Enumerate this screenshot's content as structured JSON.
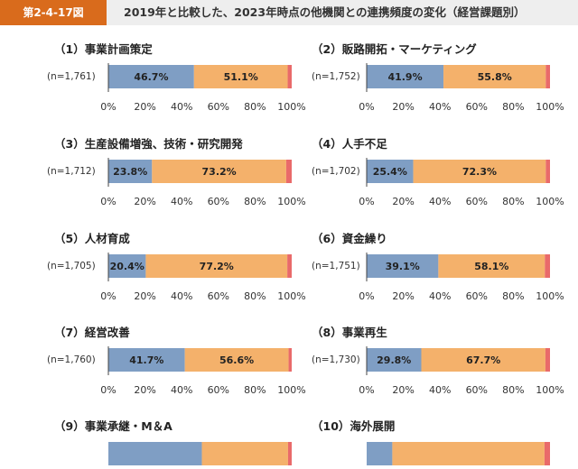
{
  "header": {
    "figure_number": "第2-4-17図",
    "title": "2019年と比較した、2023年時点の他機関との連携頻度の変化（経営課題別）"
  },
  "colors": {
    "increased": "#7f9ec4",
    "unchanged": "#f4b16b",
    "decreased": "#e96a6a",
    "header_accent": "#d96b1c",
    "header_bg": "#eeeeee"
  },
  "chart_data": [
    {
      "type": "bar",
      "title": "（1）事業計画策定",
      "n_label": "(n=1,761)",
      "values": [
        46.7,
        51.1,
        2.2
      ],
      "value_labels": [
        "46.7%",
        "51.1%",
        ""
      ],
      "xlim": [
        0,
        100
      ],
      "ticks": [
        "0%",
        "20%",
        "40%",
        "60%",
        "80%",
        "100%"
      ]
    },
    {
      "type": "bar",
      "title": "（2）販路開拓・マーケティング",
      "n_label": "(n=1,752)",
      "values": [
        41.9,
        55.8,
        2.3
      ],
      "value_labels": [
        "41.9%",
        "55.8%",
        ""
      ],
      "xlim": [
        0,
        100
      ],
      "ticks": [
        "0%",
        "20%",
        "40%",
        "60%",
        "80%",
        "100%"
      ]
    },
    {
      "type": "bar",
      "title": "（3）生産設備増強、技術・研究開発",
      "n_label": "(n=1,712)",
      "values": [
        23.8,
        73.2,
        3.0
      ],
      "value_labels": [
        "23.8%",
        "73.2%",
        ""
      ],
      "xlim": [
        0,
        100
      ],
      "ticks": [
        "0%",
        "20%",
        "40%",
        "60%",
        "80%",
        "100%"
      ]
    },
    {
      "type": "bar",
      "title": "（4）人手不足",
      "n_label": "(n=1,702)",
      "values": [
        25.4,
        72.3,
        2.3
      ],
      "value_labels": [
        "25.4%",
        "72.3%",
        ""
      ],
      "xlim": [
        0,
        100
      ],
      "ticks": [
        "0%",
        "20%",
        "40%",
        "60%",
        "80%",
        "100%"
      ]
    },
    {
      "type": "bar",
      "title": "（5）人材育成",
      "n_label": "(n=1,705)",
      "values": [
        20.4,
        77.2,
        2.4
      ],
      "value_labels": [
        "20.4%",
        "77.2%",
        ""
      ],
      "xlim": [
        0,
        100
      ],
      "ticks": [
        "0%",
        "20%",
        "40%",
        "60%",
        "80%",
        "100%"
      ]
    },
    {
      "type": "bar",
      "title": "（6）資金繰り",
      "n_label": "(n=1,751)",
      "values": [
        39.1,
        58.1,
        2.8
      ],
      "value_labels": [
        "39.1%",
        "58.1%",
        ""
      ],
      "xlim": [
        0,
        100
      ],
      "ticks": [
        "0%",
        "20%",
        "40%",
        "60%",
        "80%",
        "100%"
      ]
    },
    {
      "type": "bar",
      "title": "（7）経営改善",
      "n_label": "(n=1,760)",
      "values": [
        41.7,
        56.6,
        1.7
      ],
      "value_labels": [
        "41.7%",
        "56.6%",
        ""
      ],
      "xlim": [
        0,
        100
      ],
      "ticks": [
        "0%",
        "20%",
        "40%",
        "60%",
        "80%",
        "100%"
      ]
    },
    {
      "type": "bar",
      "title": "（8）事業再生",
      "n_label": "(n=1,730)",
      "values": [
        29.8,
        67.7,
        2.5
      ],
      "value_labels": [
        "29.8%",
        "67.7%",
        ""
      ],
      "xlim": [
        0,
        100
      ],
      "ticks": [
        "0%",
        "20%",
        "40%",
        "60%",
        "80%",
        "100%"
      ]
    },
    {
      "type": "bar",
      "title": "（9）事業承継・M＆A",
      "n_label": "",
      "values": [
        51.0,
        47.0,
        2.0
      ],
      "value_labels": [
        "",
        "",
        ""
      ],
      "xlim": [
        0,
        100
      ],
      "ticks": []
    },
    {
      "type": "bar",
      "title": "（10）海外展開",
      "n_label": "",
      "values": [
        14.0,
        83.0,
        3.0
      ],
      "value_labels": [
        "",
        "",
        ""
      ],
      "xlim": [
        0,
        100
      ],
      "ticks": []
    }
  ]
}
